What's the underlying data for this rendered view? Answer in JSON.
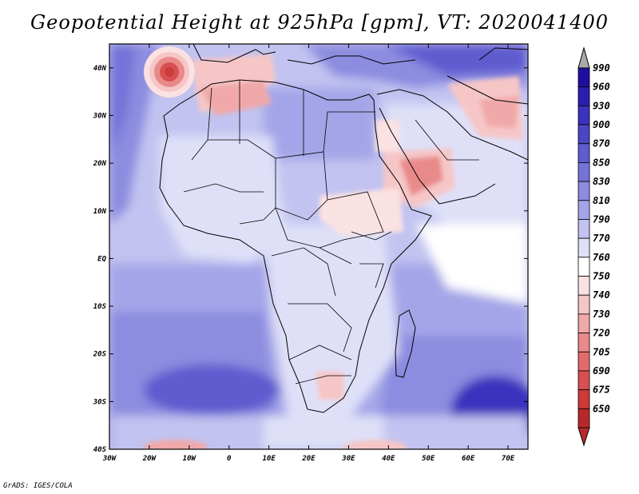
{
  "title": "Geopotential Height at 925hPa [gpm], VT: 2020041400",
  "credit": "GrADS: IGES/COLA",
  "map": {
    "region": "Africa",
    "lon_range": [
      -30,
      75
    ],
    "lat_range": [
      -40,
      45
    ],
    "lon_ticks": [
      {
        "value": -30,
        "label": "30W"
      },
      {
        "value": -20,
        "label": "20W"
      },
      {
        "value": -10,
        "label": "10W"
      },
      {
        "value": 0,
        "label": "0"
      },
      {
        "value": 10,
        "label": "10E"
      },
      {
        "value": 20,
        "label": "20E"
      },
      {
        "value": 30,
        "label": "30E"
      },
      {
        "value": 40,
        "label": "40E"
      },
      {
        "value": 50,
        "label": "50E"
      },
      {
        "value": 60,
        "label": "60E"
      },
      {
        "value": 70,
        "label": "70E"
      }
    ],
    "lat_ticks": [
      {
        "value": 40,
        "label": "40N"
      },
      {
        "value": 30,
        "label": "30N"
      },
      {
        "value": 20,
        "label": "20N"
      },
      {
        "value": 10,
        "label": "10N"
      },
      {
        "value": 0,
        "label": "EQ"
      },
      {
        "value": -10,
        "label": "10S"
      },
      {
        "value": -20,
        "label": "20S"
      },
      {
        "value": -30,
        "label": "30S"
      },
      {
        "value": -40,
        "label": "40S"
      }
    ]
  },
  "colorbar": {
    "levels": [
      {
        "label": "990",
        "color": "#1f0fa0"
      },
      {
        "label": "960",
        "color": "#2a1eb0"
      },
      {
        "label": "930",
        "color": "#3a32bd"
      },
      {
        "label": "900",
        "color": "#4a46c6"
      },
      {
        "label": "870",
        "color": "#5e5ccf"
      },
      {
        "label": "850",
        "color": "#7473d8"
      },
      {
        "label": "830",
        "color": "#8c8ce0"
      },
      {
        "label": "810",
        "color": "#a4a5e8"
      },
      {
        "label": "790",
        "color": "#c2c3f0"
      },
      {
        "label": "770",
        "color": "#dfe0f8"
      },
      {
        "label": "760",
        "color": "#ffffff"
      },
      {
        "label": "750",
        "color": "#fbe2e2"
      },
      {
        "label": "740",
        "color": "#f6c6c6"
      },
      {
        "label": "730",
        "color": "#f0a8a8"
      },
      {
        "label": "720",
        "color": "#e98a8a"
      },
      {
        "label": "705",
        "color": "#e16b6b"
      },
      {
        "label": "690",
        "color": "#d85050"
      },
      {
        "label": "675",
        "color": "#cc3a3a"
      },
      {
        "label": "650",
        "color": "#b82828"
      }
    ],
    "top_arrow_color": "#aaaaaa",
    "bottom_arrow_color": "#b82828"
  }
}
